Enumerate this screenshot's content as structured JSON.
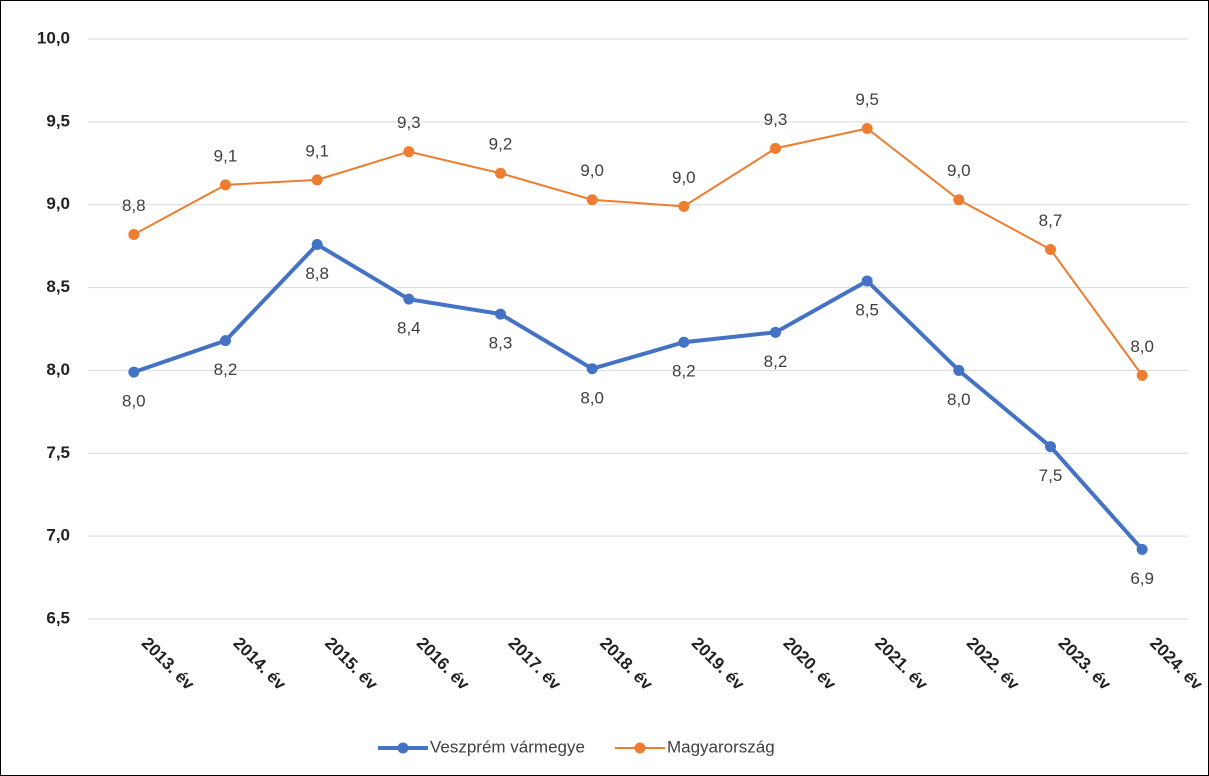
{
  "chart_data": {
    "type": "line",
    "categories": [
      "2013. év",
      "2014. év",
      "2015. év",
      "2016. év",
      "2017. év",
      "2018. év",
      "2019. év",
      "2020. év",
      "2021. év",
      "2022. év",
      "2023. év",
      "2024. év"
    ],
    "series": [
      {
        "name": "Veszprém vármegye",
        "color": "#4472c4",
        "values": [
          7.99,
          8.18,
          8.76,
          8.43,
          8.34,
          8.01,
          8.17,
          8.23,
          8.54,
          8.0,
          7.54,
          6.92
        ],
        "value_labels": [
          "8,0",
          "8,2",
          "8,8",
          "8,4",
          "8,3",
          "8,0",
          "8,2",
          "8,2",
          "8,5",
          "8,0",
          "7,5",
          "6,9"
        ]
      },
      {
        "name": "Magyarország",
        "color": "#ed7d31",
        "values": [
          8.82,
          9.12,
          9.15,
          9.32,
          9.19,
          9.03,
          8.99,
          9.34,
          9.46,
          9.03,
          8.73,
          7.97
        ],
        "value_labels": [
          "8,8",
          "9,1",
          "9,1",
          "9,3",
          "9,2",
          "9,0",
          "9,0",
          "9,3",
          "9,5",
          "9,0",
          "8,7",
          "8,0"
        ]
      }
    ],
    "ylim": [
      6.5,
      10.0
    ],
    "yticks": [
      {
        "value": 6.5,
        "label": "6,5"
      },
      {
        "value": 7.0,
        "label": "7,0"
      },
      {
        "value": 7.5,
        "label": "7,5"
      },
      {
        "value": 8.0,
        "label": "8,0"
      },
      {
        "value": 8.5,
        "label": "8,5"
      },
      {
        "value": 9.0,
        "label": "9,0"
      },
      {
        "value": 9.5,
        "label": "9,5"
      },
      {
        "value": 10.0,
        "label": "10,0"
      }
    ],
    "grid": true,
    "legend": "bottom"
  }
}
